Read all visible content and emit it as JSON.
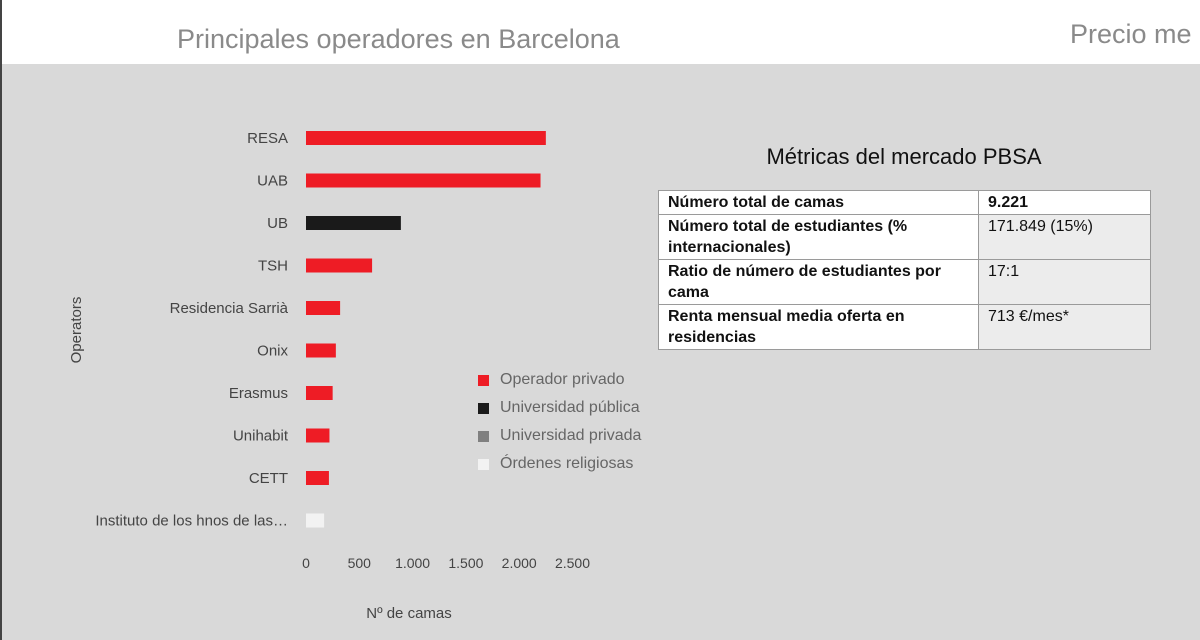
{
  "header": {
    "title": "Principales operadores en Barcelona",
    "right_title": "Precio me"
  },
  "legend": [
    {
      "label": "Operador privado",
      "color": "#ee1c25"
    },
    {
      "label": "Universidad pública",
      "color": "#1a1a1a"
    },
    {
      "label": "Universidad privada",
      "color": "#808080"
    },
    {
      "label": "Órdenes religiosas",
      "color": "#f2f2f2"
    }
  ],
  "chart_data": {
    "type": "bar",
    "orientation": "horizontal",
    "xlabel": "Nº de camas",
    "ylabel": "Operators",
    "xlim": [
      0,
      2500
    ],
    "xticks": [
      0,
      500,
      1000,
      1500,
      2000,
      2500
    ],
    "xtick_labels": [
      "0",
      "500",
      "1.000",
      "1.500",
      "2.000",
      "2.500"
    ],
    "grid": false,
    "legend_position": "bottom-right",
    "categories": [
      "RESA",
      "UAB",
      "UB",
      "TSH",
      "Residencia Sarrià",
      "Onix",
      "Erasmus",
      "Unihabit",
      "CETT",
      "Instituto de los hnos de las…"
    ],
    "values": [
      2250,
      2200,
      890,
      620,
      320,
      280,
      250,
      220,
      215,
      170
    ],
    "series_type": [
      "Operador privado",
      "Operador privado",
      "Universidad pública",
      "Operador privado",
      "Operador privado",
      "Operador privado",
      "Operador privado",
      "Operador privado",
      "Operador privado",
      "Órdenes religiosas"
    ]
  },
  "metrics": {
    "title": "Métricas del mercado PBSA",
    "rows": [
      {
        "label": "Número total de camas",
        "value": "9.221"
      },
      {
        "label": "Número total de estudiantes (% internacionales)",
        "value": "171.849 (15%)"
      },
      {
        "label": "Ratio de número de estudiantes por cama",
        "value": "17:1"
      },
      {
        "label": "Renta mensual media oferta en residencias",
        "value": "713 €/mes*"
      }
    ]
  }
}
